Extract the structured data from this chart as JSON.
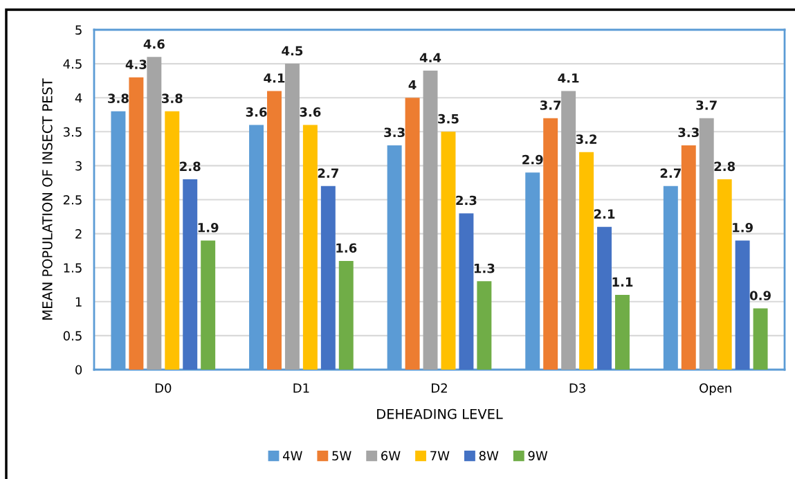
{
  "chart_data": {
    "type": "bar",
    "categories": [
      "D0",
      "D1",
      "D2",
      "D3",
      "Open"
    ],
    "series": [
      {
        "name": "4W",
        "color": "#5b9bd5",
        "values": [
          3.8,
          3.6,
          3.3,
          2.9,
          2.7
        ]
      },
      {
        "name": "5W",
        "color": "#ed7d31",
        "values": [
          4.3,
          4.1,
          4,
          3.7,
          3.3
        ]
      },
      {
        "name": "6W",
        "color": "#a5a5a5",
        "values": [
          4.6,
          4.5,
          4.4,
          4.1,
          3.7
        ]
      },
      {
        "name": "7W",
        "color": "#ffc000",
        "values": [
          3.8,
          3.6,
          3.5,
          3.2,
          2.8
        ]
      },
      {
        "name": "8W",
        "color": "#4472c4",
        "values": [
          2.8,
          2.7,
          2.3,
          2.1,
          1.9
        ]
      },
      {
        "name": "9W",
        "color": "#70ad47",
        "values": [
          1.9,
          1.6,
          1.3,
          1.1,
          0.9
        ]
      }
    ],
    "xlabel": "DEHEADING LEVEL",
    "ylabel": "MEAN POPULATION OF INSECT PEST",
    "ylim": [
      0,
      5
    ],
    "yticks": [
      0,
      0.5,
      1,
      1.5,
      2,
      2.5,
      3,
      3.5,
      4,
      4.5,
      5
    ],
    "grid": "y",
    "legend": "bottom",
    "data_labels": true
  }
}
